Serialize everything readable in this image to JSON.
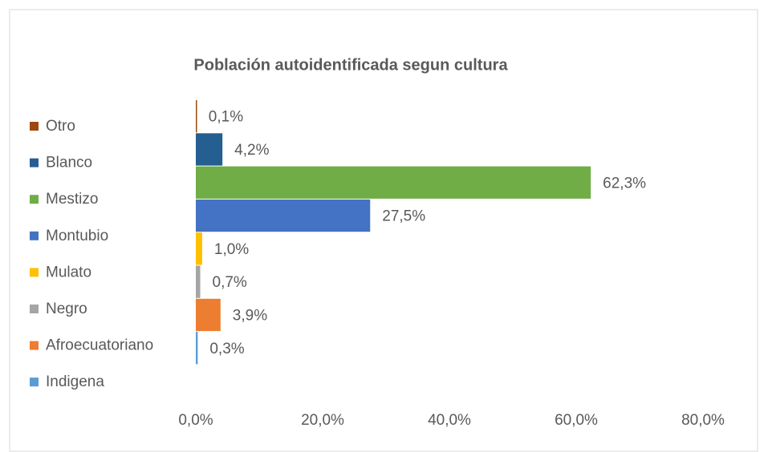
{
  "chart_data": {
    "type": "bar",
    "orientation": "horizontal",
    "title": "Población autoidentificada segun cultura",
    "series": [
      {
        "name": "Indigena",
        "color": "#5b9bd5",
        "values": [
          0.3
        ],
        "value_labels": [
          "0,3%"
        ]
      },
      {
        "name": "Afroecuatoriano",
        "color": "#ed7d31",
        "values": [
          3.9
        ],
        "value_labels": [
          "3,9%"
        ]
      },
      {
        "name": "Negro",
        "color": "#a5a5a5",
        "values": [
          0.7
        ],
        "value_labels": [
          "0,7%"
        ]
      },
      {
        "name": "Mulato",
        "color": "#ffc000",
        "values": [
          1.0
        ],
        "value_labels": [
          "1,0%"
        ]
      },
      {
        "name": "Montubio",
        "color": "#4472c4",
        "values": [
          27.5
        ],
        "value_labels": [
          "27,5%"
        ]
      },
      {
        "name": "Mestizo",
        "color": "#70ad47",
        "values": [
          62.3
        ],
        "value_labels": [
          "62,3%"
        ]
      },
      {
        "name": "Blanco",
        "color": "#255e91",
        "values": [
          4.2
        ],
        "value_labels": [
          "4,2%"
        ]
      },
      {
        "name": "Otro",
        "color": "#9e480e",
        "values": [
          0.1
        ],
        "value_labels": [
          "0,1%"
        ]
      }
    ],
    "xlim": [
      0,
      80
    ],
    "xticks": [
      {
        "value": 0,
        "label": "0,0%"
      },
      {
        "value": 20,
        "label": "20,0%"
      },
      {
        "value": 40,
        "label": "40,0%"
      },
      {
        "value": 60,
        "label": "60,0%"
      },
      {
        "value": 80,
        "label": "80,0%"
      }
    ],
    "legend": "left",
    "grid": false
  }
}
